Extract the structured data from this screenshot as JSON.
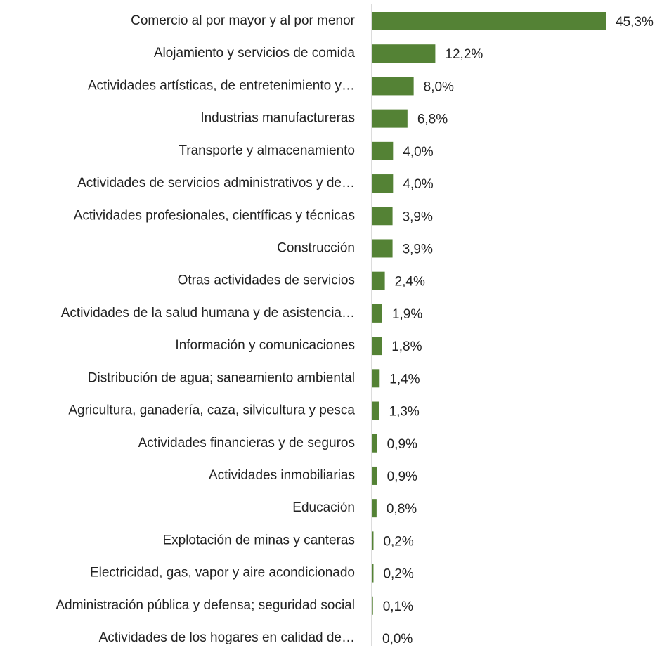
{
  "chart_data": {
    "type": "bar",
    "orientation": "horizontal",
    "categories": [
      "Comercio al por mayor y al por menor",
      "Alojamiento y servicios de comida",
      "Actividades artísticas, de entretenimiento y…",
      "Industrias manufactureras",
      "Transporte y almacenamiento",
      "Actividades de servicios administrativos y de…",
      "Actividades profesionales, científicas y técnicas",
      "Construcción",
      "Otras actividades de servicios",
      "Actividades de la salud humana y de asistencia…",
      "Información y comunicaciones",
      "Distribución de agua; saneamiento ambiental",
      "Agricultura, ganadería, caza, silvicultura y pesca",
      "Actividades financieras y de seguros",
      "Actividades inmobiliarias",
      "Educación",
      "Explotación de minas y canteras",
      "Electricidad, gas, vapor y aire acondicionado",
      "Administración pública y defensa; seguridad social",
      "Actividades de los hogares en calidad de…"
    ],
    "values": [
      45.3,
      12.2,
      8.0,
      6.8,
      4.0,
      4.0,
      3.9,
      3.9,
      2.4,
      1.9,
      1.8,
      1.4,
      1.3,
      0.9,
      0.9,
      0.8,
      0.2,
      0.2,
      0.1,
      0.0
    ],
    "value_labels": [
      "45,3%",
      "12,2%",
      "8,0%",
      "6,8%",
      "4,0%",
      "4,0%",
      "3,9%",
      "3,9%",
      "2,4%",
      "1,9%",
      "1,8%",
      "1,4%",
      "1,3%",
      "0,9%",
      "0,9%",
      "0,8%",
      "0,2%",
      "0,2%",
      "0,1%",
      "0,0%"
    ],
    "color": "#548235"
  }
}
